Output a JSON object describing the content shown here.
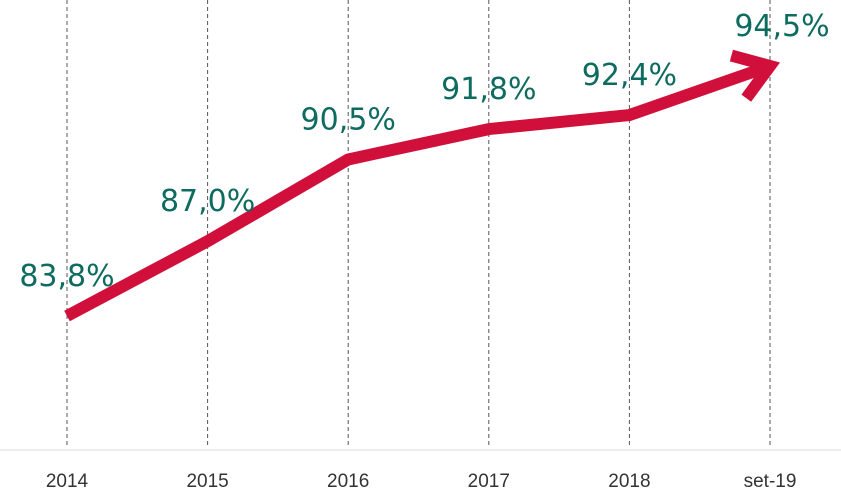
{
  "chart_data": {
    "type": "line",
    "categories": [
      "2014",
      "2015",
      "2016",
      "2017",
      "2018",
      "set-19"
    ],
    "values": [
      83.8,
      87.0,
      90.5,
      91.8,
      92.4,
      94.5
    ],
    "value_labels": [
      "83,8%",
      "87,0%",
      "90,5%",
      "91,8%",
      "92,4%",
      "94,5%"
    ],
    "color": "#d0103a",
    "label_color": "#0e6b5f"
  }
}
